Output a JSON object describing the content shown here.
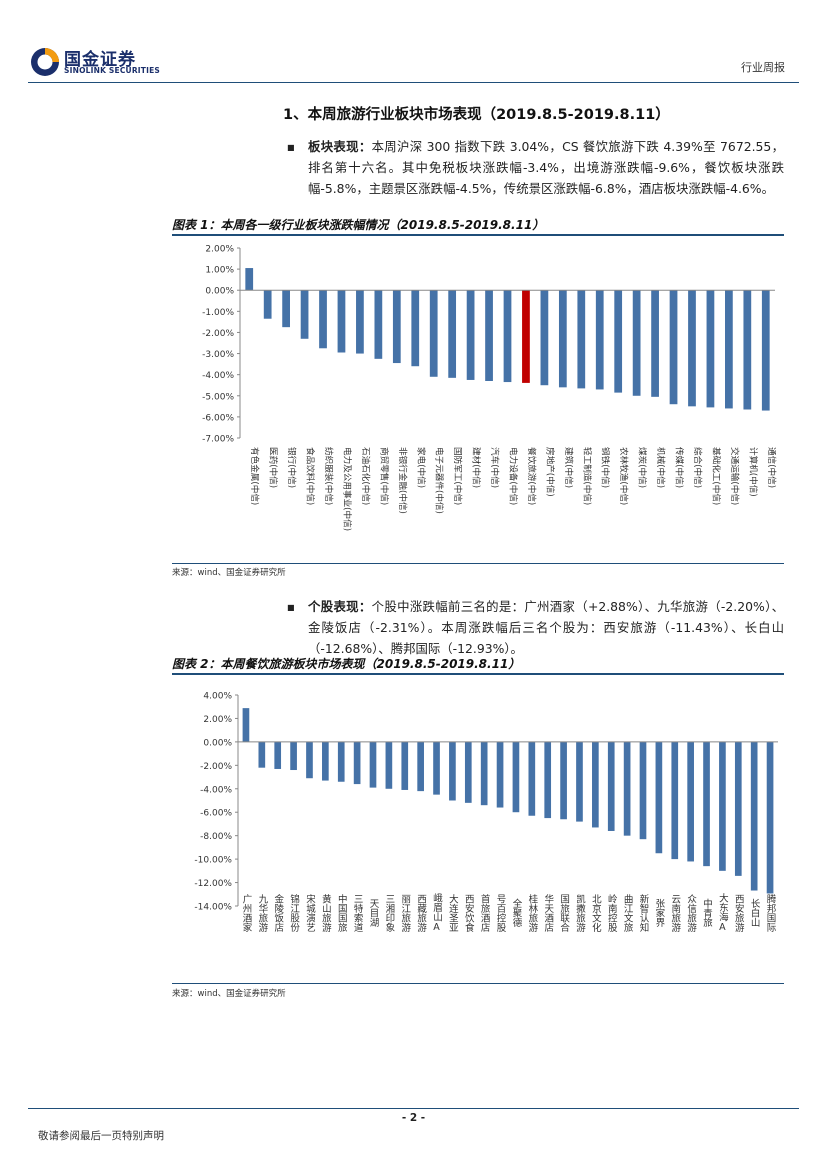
{
  "header": {
    "logo_cn": "国金证券",
    "logo_en": "SINOLINK SECURITIES",
    "report_type": "行业周报"
  },
  "section": {
    "title": "1、本周旅游行业板块市场表现（2019.8.5-2019.8.11）"
  },
  "para1": {
    "label": "板块表现：",
    "text": "本周沪深 300 指数下跌 3.04%，CS 餐饮旅游下跌 4.39%至 7672.55，排名第十六名。其中免税板块涨跌幅-3.4%，出境游涨跌幅-9.6%，餐饮板块涨跌幅-5.8%，主题景区涨跌幅-4.5%，传统景区涨跌幅-6.8%，酒店板块涨跌幅-4.6%。"
  },
  "figure1": {
    "title": "图表 1：本周各一级行业板块涨跌幅情况（2019.8.5-2019.8.11）",
    "source": "来源：wind、国金证券研究所"
  },
  "para2": {
    "label": "个股表现：",
    "text": "个股中涨跌幅前三名的是：广州酒家（+2.88%）、九华旅游（-2.20%）、金陵饭店（-2.31%）。本周涨跌幅后三名个股为：西安旅游（-11.43%）、长白山（-12.68%）、腾邦国际（-12.93%）。"
  },
  "figure2": {
    "title": "图表 2：本周餐饮旅游板块市场表现（2019.8.5-2019.8.11）",
    "source": "来源：wind、国金证券研究所"
  },
  "footer": {
    "page": "- 2 -",
    "note": "敬请参阅最后一页特别声明"
  },
  "colors": {
    "bar": "#4572a7",
    "highlight": "#c00000",
    "rule": "#1f4e79",
    "logo": "#1b2f6b"
  },
  "chart_data": [
    {
      "type": "bar",
      "title": "图表 1：本周各一级行业板块涨跌幅情况（2019.8.5-2019.8.11）",
      "ylim": [
        -7,
        2
      ],
      "yticks": [
        2,
        1,
        0,
        -1,
        -2,
        -3,
        -4,
        -5,
        -6,
        -7
      ],
      "ytick_labels": [
        "2.00%",
        "1.00%",
        "0.00%",
        "-1.00%",
        "-2.00%",
        "-3.00%",
        "-4.00%",
        "-5.00%",
        "-6.00%",
        "-7.00%"
      ],
      "highlight_category": "餐饮旅游(中信)",
      "categories": [
        "有色金属(中信)",
        "医药(中信)",
        "银行(中信)",
        "食品饮料(中信)",
        "纺织服装(中信)",
        "电力及公用事业(中信)",
        "石油石化(中信)",
        "商贸零售(中信)",
        "非银行金融(中信)",
        "家电(中信)",
        "电子元器件(中信)",
        "国防军工(中信)",
        "建材(中信)",
        "汽车(中信)",
        "电力设备(中信)",
        "餐饮旅游(中信)",
        "房地产(中信)",
        "建筑(中信)",
        "轻工制造(中信)",
        "钢铁(中信)",
        "农林牧渔(中信)",
        "煤炭(中信)",
        "机械(中信)",
        "传媒(中信)",
        "综合(中信)",
        "基础化工(中信)",
        "交通运输(中信)",
        "计算机(中信)",
        "通信(中信)"
      ],
      "values": [
        1.05,
        -1.35,
        -1.75,
        -2.3,
        -2.75,
        -2.95,
        -3.0,
        -3.25,
        -3.45,
        -3.6,
        -4.1,
        -4.15,
        -4.25,
        -4.3,
        -4.35,
        -4.39,
        -4.5,
        -4.6,
        -4.65,
        -4.7,
        -4.85,
        -5.0,
        -5.05,
        -5.4,
        -5.5,
        -5.55,
        -5.6,
        -5.65,
        -5.7
      ]
    },
    {
      "type": "bar",
      "title": "图表 2：本周餐饮旅游板块市场表现（2019.8.5-2019.8.11）",
      "ylim": [
        -14,
        4
      ],
      "yticks": [
        4,
        2,
        0,
        -2,
        -4,
        -6,
        -8,
        -10,
        -12,
        -14
      ],
      "ytick_labels": [
        "4.00%",
        "2.00%",
        "0.00%",
        "-2.00%",
        "-4.00%",
        "-6.00%",
        "-8.00%",
        "-10.00%",
        "-12.00%",
        "-14.00%"
      ],
      "categories": [
        "广州酒家",
        "九华旅游",
        "金陵饭店",
        "锦江股份",
        "宋城演艺",
        "黄山旅游",
        "中国国旅",
        "三特索道",
        "天目湖",
        "三湘印象",
        "丽江旅游",
        "西藏旅游",
        "峨眉山A",
        "大连圣亚",
        "西安饮食",
        "首旅酒店",
        "号百控股",
        "全聚德",
        "桂林旅游",
        "华天酒店",
        "国旅联合",
        "凯撒旅游",
        "北京文化",
        "岭南控股",
        "曲江文旅",
        "新智认知",
        "张家界",
        "云南旅游",
        "众信旅游",
        "中青旅",
        "大东海A",
        "西安旅游",
        "长白山",
        "腾邦国际"
      ],
      "values": [
        2.88,
        -2.2,
        -2.31,
        -2.4,
        -3.1,
        -3.3,
        -3.4,
        -3.6,
        -3.9,
        -4.0,
        -4.1,
        -4.2,
        -4.5,
        -5.0,
        -5.2,
        -5.4,
        -5.6,
        -6.0,
        -6.3,
        -6.5,
        -6.6,
        -6.8,
        -7.3,
        -7.6,
        -8.0,
        -8.3,
        -9.5,
        -10.0,
        -10.2,
        -10.6,
        -11.0,
        -11.43,
        -12.68,
        -12.93
      ]
    }
  ]
}
